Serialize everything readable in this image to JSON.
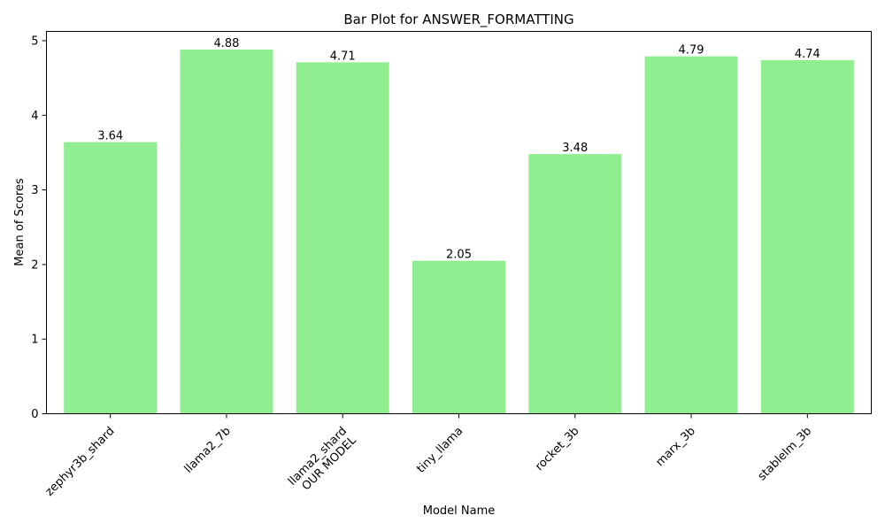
{
  "chart_data": {
    "type": "bar",
    "title": "Bar Plot for ANSWER_FORMATTING",
    "xlabel": "Model Name",
    "ylabel": "Mean of Scores",
    "categories": [
      [
        "zephyr3b_shard"
      ],
      [
        "llama2_7b"
      ],
      [
        "llama2_shard",
        "OUR MODEL"
      ],
      [
        "tiny_llama"
      ],
      [
        "rocket_3b"
      ],
      [
        "marx_3b"
      ],
      [
        "stablelm_3b"
      ]
    ],
    "values": [
      3.64,
      4.88,
      4.71,
      2.05,
      3.48,
      4.79,
      4.74
    ],
    "value_labels": [
      "3.64",
      "4.88",
      "4.71",
      "2.05",
      "3.48",
      "4.79",
      "4.74"
    ],
    "ylim": [
      0,
      5.124
    ],
    "yticks": [
      0,
      1,
      2,
      3,
      4,
      5
    ],
    "grid": false,
    "legend": "none",
    "bar_color": "#90ee90"
  }
}
